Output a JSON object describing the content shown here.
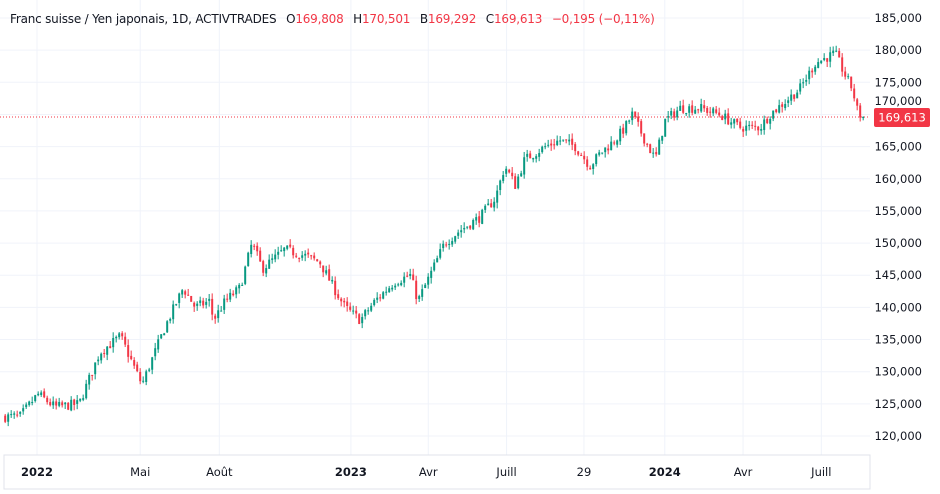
{
  "header": {
    "symbol": "Franc suisse / Yen japonais, 1D, ACTIVTRADES",
    "open_label": "O",
    "open": "169,808",
    "high_label": "H",
    "high": "170,501",
    "low_label": "B",
    "low": "169,292",
    "close_label": "C",
    "close": "169,613",
    "change": "−0,195 (−0,11%)"
  },
  "colors": {
    "up": "#089981",
    "down": "#f23645",
    "grid": "#f0f3fa",
    "text": "#131722",
    "last_price": "#f23645"
  },
  "chart_data": {
    "type": "candlestick",
    "title": "Franc suisse / Yen japonais, 1D, ACTIVTRADES",
    "ylim": [
      118000,
      187000
    ],
    "y_ticks": [
      "120,000",
      "125,000",
      "130,000",
      "135,000",
      "140,000",
      "145,000",
      "150,000",
      "155,000",
      "160,000",
      "165,000",
      "170,000",
      "175,000",
      "180,000",
      "185,000"
    ],
    "y_tick_values": [
      120000,
      125000,
      130000,
      135000,
      140000,
      145000,
      150000,
      155000,
      160000,
      165000,
      170000,
      175000,
      180000,
      185000
    ],
    "x_ticks": [
      {
        "label": "2022",
        "date": "2022-01-01",
        "bold": true
      },
      {
        "label": "Mai",
        "date": "2022-05-01"
      },
      {
        "label": "Août",
        "date": "2022-08-01"
      },
      {
        "label": "2023",
        "date": "2023-01-01",
        "bold": true
      },
      {
        "label": "Avr",
        "date": "2023-04-01"
      },
      {
        "label": "Juill",
        "date": "2023-07-01"
      },
      {
        "label": "29",
        "date": "2023-09-29"
      },
      {
        "label": "2024",
        "date": "2024-01-01",
        "bold": true
      },
      {
        "label": "Avr",
        "date": "2024-04-01"
      },
      {
        "label": "Juill",
        "date": "2024-07-01"
      }
    ],
    "last_price": 169613,
    "last_price_label": "169,613",
    "grid": true,
    "close_path": [
      [
        "2021-11-25",
        123000
      ],
      [
        "2021-12-12",
        123000
      ],
      [
        "2022-01-02",
        126500
      ],
      [
        "2022-01-22",
        124500
      ],
      [
        "2022-02-19",
        125000
      ],
      [
        "2022-03-15",
        133000
      ],
      [
        "2022-04-08",
        135500
      ],
      [
        "2022-05-03",
        128000
      ],
      [
        "2022-05-18",
        133000
      ],
      [
        "2022-05-30",
        137000
      ],
      [
        "2022-06-20",
        143000
      ],
      [
        "2022-07-04",
        140000
      ],
      [
        "2022-07-21",
        141000
      ],
      [
        "2022-07-25",
        138000
      ],
      [
        "2022-08-08",
        141000
      ],
      [
        "2022-08-25",
        143000
      ],
      [
        "2022-09-08",
        150000
      ],
      [
        "2022-09-20",
        146000
      ],
      [
        "2022-10-16",
        149000
      ],
      [
        "2022-11-09",
        148000
      ],
      [
        "2022-11-26",
        147000
      ],
      [
        "2022-12-08",
        144000
      ],
      [
        "2022-12-25",
        140000
      ],
      [
        "2023-01-12",
        138000
      ],
      [
        "2023-01-29",
        141000
      ],
      [
        "2023-02-21",
        144000
      ],
      [
        "2023-03-11",
        145000
      ],
      [
        "2023-03-20",
        141000
      ],
      [
        "2023-04-03",
        145000
      ],
      [
        "2023-04-20",
        150000
      ],
      [
        "2023-05-08",
        152000
      ],
      [
        "2023-05-31",
        154000
      ],
      [
        "2023-06-18",
        157000
      ],
      [
        "2023-06-29",
        162000
      ],
      [
        "2023-07-11",
        159000
      ],
      [
        "2023-07-22",
        163000
      ],
      [
        "2023-08-15",
        165000
      ],
      [
        "2023-09-01",
        166000
      ],
      [
        "2023-09-19",
        165000
      ],
      [
        "2023-10-06",
        162000
      ],
      [
        "2023-10-18",
        164000
      ],
      [
        "2023-11-04",
        166000
      ],
      [
        "2023-11-16",
        168000
      ],
      [
        "2023-11-24",
        170000
      ],
      [
        "2023-12-09",
        166000
      ],
      [
        "2023-12-21",
        163000
      ],
      [
        "2024-01-01",
        169000
      ],
      [
        "2024-01-19",
        171000
      ],
      [
        "2024-02-11",
        171000
      ],
      [
        "2024-03-05",
        170000
      ],
      [
        "2024-03-28",
        168000
      ],
      [
        "2024-04-21",
        168000
      ],
      [
        "2024-05-02",
        170000
      ],
      [
        "2024-05-20",
        172000
      ],
      [
        "2024-06-06",
        174000
      ],
      [
        "2024-06-24",
        178000
      ],
      [
        "2024-07-17",
        179500
      ],
      [
        "2024-07-29",
        176000
      ],
      [
        "2024-08-06",
        174000
      ],
      [
        "2024-08-13",
        170000
      ],
      [
        "2024-08-21",
        169613
      ]
    ]
  }
}
